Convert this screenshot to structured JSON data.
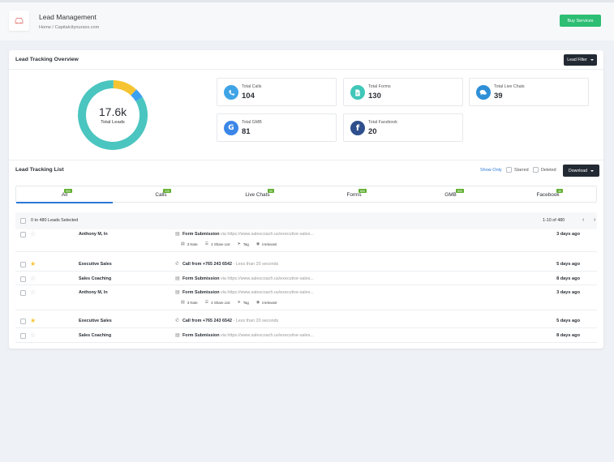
{
  "header": {
    "title": "Lead Management",
    "breadcrumb": "Home / Capitalcitynurses.com",
    "buy_services": "Buy Services"
  },
  "overview": {
    "title": "Lead Tracking Overview",
    "filter_label": "Lead Filter",
    "total_value": "17.6k",
    "total_label": "Total Leads",
    "segments": [
      {
        "name": "teal",
        "share": 0.84,
        "color": "#4bc5bf"
      },
      {
        "name": "yellow",
        "share": 0.115,
        "color": "#f6c432"
      },
      {
        "name": "blue",
        "share": 0.045,
        "color": "#3d9ff0"
      }
    ],
    "stats": [
      {
        "label": "Total Calls",
        "value": "104",
        "icon": "phone-icon",
        "color": "#3fa4e6"
      },
      {
        "label": "Total Forms",
        "value": "130",
        "icon": "document-icon",
        "color": "#3fc7b8"
      },
      {
        "label": "Total Live Chats",
        "value": "39",
        "icon": "chat-icon",
        "color": "#2e8fd6"
      },
      {
        "label": "Total GMB",
        "value": "81",
        "icon": "google-icon",
        "color": "#3b87e8"
      },
      {
        "label": "Total Facebook",
        "value": "20",
        "icon": "facebook-icon",
        "color": "#2f4f8c"
      }
    ]
  },
  "list": {
    "title": "Lead Tracking List",
    "show_only": "Show Only",
    "starred": "Starred",
    "deleted": "Deleted",
    "download": "Download",
    "tabs": [
      {
        "label": "All",
        "badge": "500"
      },
      {
        "label": "Calls",
        "badge": "120"
      },
      {
        "label": "Live Chats",
        "badge": "50"
      },
      {
        "label": "Forms",
        "badge": "600"
      },
      {
        "label": "GMB",
        "badge": "600"
      },
      {
        "label": "Facebook",
        "badge": "40"
      }
    ],
    "selected_label": "0 to 480 Leads Selected",
    "pager": "1-10 of 480",
    "rows": [
      {
        "name": "Anthony M, In",
        "type": "Form Submission",
        "detail": "via https://www.salescoach.us/executive-sales...",
        "ago": "3 days ago",
        "starred": false,
        "chips": [
          "3 Note",
          "2 Share List",
          "Tag",
          "irrelevant"
        ]
      },
      {
        "name": "Executive Sales",
        "type": "Call from +765 243 6542",
        "detail": "- Less than 20 seconds",
        "ago": "5 days ago",
        "starred": true
      },
      {
        "name": "Sales Coaching",
        "type": "Form Submission",
        "detail": "via https://www.salescoach.us/executive-sales...",
        "ago": "8 days ago",
        "starred": false
      },
      {
        "name": "Anthony M, In",
        "type": "Form Submission",
        "detail": "via https://www.salescoach.us/executive-sales...",
        "ago": "3 days ago",
        "starred": false,
        "chips": [
          "3 Note",
          "2 Share List",
          "Tag",
          "irrelevant"
        ]
      },
      {
        "name": "Executive Sales",
        "type": "Call from +765 243 6542",
        "detail": "- Less than 20 seconds",
        "ago": "5 days ago",
        "starred": true
      },
      {
        "name": "Sales Coaching",
        "type": "Form Submission",
        "detail": "via https://www.salescoach.us/executive-sales...",
        "ago": "8 days ago",
        "starred": false
      }
    ]
  },
  "colors": {
    "accent": "#2b79d6",
    "green": "#2dbe73",
    "star_on": "#f6c432",
    "star_off": "#c5cad1"
  }
}
